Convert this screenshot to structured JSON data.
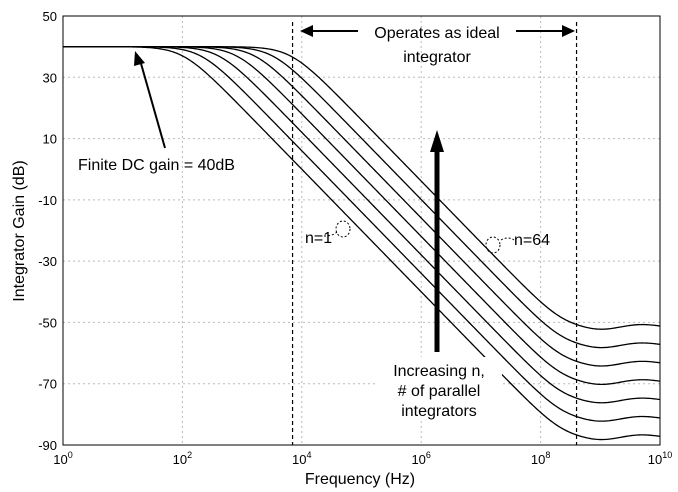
{
  "chart_data": {
    "type": "line",
    "xlabel": "Frequency (Hz)",
    "ylabel": "Integrator Gain (dB)",
    "x_scale": "log",
    "xlim": [
      1,
      10000000000
    ],
    "ylim": [
      -90,
      50
    ],
    "x_ticks": [
      {
        "base": "10",
        "exp": "0"
      },
      {
        "base": "10",
        "exp": "2"
      },
      {
        "base": "10",
        "exp": "4"
      },
      {
        "base": "10",
        "exp": "6"
      },
      {
        "base": "10",
        "exp": "8"
      },
      {
        "base": "10",
        "exp": "10"
      }
    ],
    "y_ticks": [
      "50",
      "30",
      "10",
      "-10",
      "-30",
      "-50",
      "-70",
      "-90"
    ],
    "grid": true,
    "series": [
      {
        "name": "n=1",
        "dc_gain_db": 40,
        "corner_hz": 100,
        "floor_db": -88
      },
      {
        "name": "",
        "dc_gain_db": 40,
        "corner_hz": 200,
        "floor_db": -82
      },
      {
        "name": "",
        "dc_gain_db": 40,
        "corner_hz": 400,
        "floor_db": -76
      },
      {
        "name": "",
        "dc_gain_db": 40,
        "corner_hz": 800,
        "floor_db": -70
      },
      {
        "name": "",
        "dc_gain_db": 40,
        "corner_hz": 1600,
        "floor_db": -64
      },
      {
        "name": "",
        "dc_gain_db": 40,
        "corner_hz": 3200,
        "floor_db": -58
      },
      {
        "name": "n=64",
        "dc_gain_db": 40,
        "corner_hz": 6400,
        "floor_db": -52
      }
    ],
    "vlines_hz": [
      7000,
      400000000
    ],
    "annotations": {
      "region": [
        "Operates as ideal",
        "integrator"
      ],
      "dc_gain": "Finite DC gain = 40dB",
      "n1": "n=1",
      "n64": "n=64",
      "increasing": [
        "Increasing n,",
        "# of parallel",
        "integrators"
      ]
    }
  }
}
